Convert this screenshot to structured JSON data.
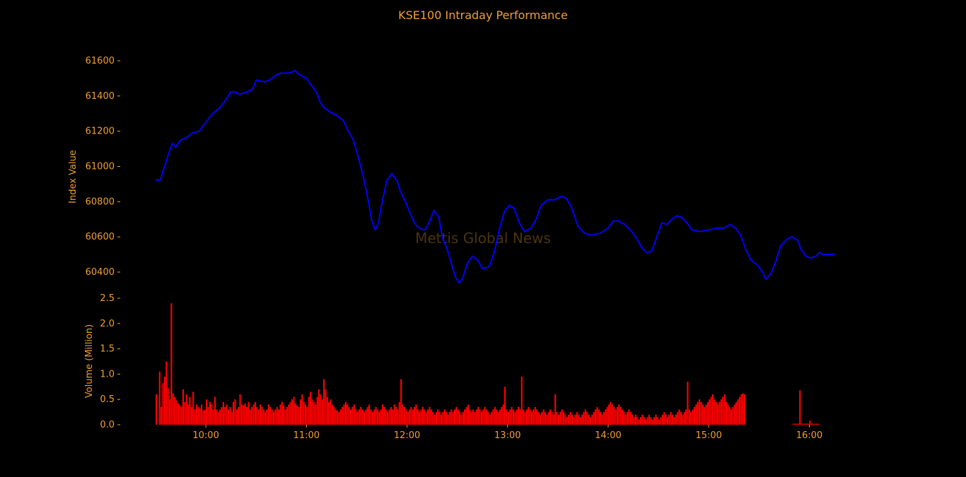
{
  "chart_data": {
    "type": "line+bar",
    "title": "KSE100 Intraday Performance",
    "watermark": "Mettis Global News",
    "colors": {
      "background": "#000000",
      "text": "#f0a030",
      "index_line": "#0000ff",
      "volume_bars": "#ff0000",
      "watermark": "#4a3410"
    },
    "grid": false,
    "legend": "none",
    "x_axis": {
      "label": "",
      "range": [
        "09:30",
        "16:15"
      ],
      "ticks": [
        "10:00",
        "11:00",
        "12:00",
        "13:00",
        "14:00",
        "15:00",
        "16:00"
      ]
    },
    "index_panel": {
      "ylabel": "Index Value",
      "ylim": [
        60330,
        61640
      ],
      "yticks": [
        "60400",
        "60600",
        "60800",
        "61000",
        "61200",
        "61400",
        "61600"
      ],
      "series": {
        "type": "line",
        "points": [
          [
            "09:30",
            60920
          ],
          [
            "09:33",
            60925
          ],
          [
            "09:35",
            60990
          ],
          [
            "09:38",
            61080
          ],
          [
            "09:40",
            61130
          ],
          [
            "09:42",
            61110
          ],
          [
            "09:45",
            61150
          ],
          [
            "09:48",
            61160
          ],
          [
            "09:52",
            61190
          ],
          [
            "09:56",
            61200
          ],
          [
            "10:00",
            61250
          ],
          [
            "10:04",
            61300
          ],
          [
            "10:08",
            61330
          ],
          [
            "10:12",
            61380
          ],
          [
            "10:15",
            61425
          ],
          [
            "10:18",
            61420
          ],
          [
            "10:20",
            61410
          ],
          [
            "10:24",
            61420
          ],
          [
            "10:28",
            61440
          ],
          [
            "10:30",
            61490
          ],
          [
            "10:35",
            61480
          ],
          [
            "10:38",
            61490
          ],
          [
            "10:42",
            61520
          ],
          [
            "10:45",
            61530
          ],
          [
            "10:50",
            61530
          ],
          [
            "10:53",
            61545
          ],
          [
            "10:56",
            61520
          ],
          [
            "11:00",
            61500
          ],
          [
            "11:03",
            61460
          ],
          [
            "11:06",
            61420
          ],
          [
            "11:08",
            61370
          ],
          [
            "11:10",
            61340
          ],
          [
            "11:14",
            61310
          ],
          [
            "11:18",
            61290
          ],
          [
            "11:22",
            61260
          ],
          [
            "11:25",
            61200
          ],
          [
            "11:28",
            61150
          ],
          [
            "11:31",
            61050
          ],
          [
            "11:34",
            60940
          ],
          [
            "11:37",
            60800
          ],
          [
            "11:39",
            60690
          ],
          [
            "11:41",
            60640
          ],
          [
            "11:43",
            60680
          ],
          [
            "11:45",
            60790
          ],
          [
            "11:48",
            60920
          ],
          [
            "11:51",
            60960
          ],
          [
            "11:54",
            60920
          ],
          [
            "11:56",
            60860
          ],
          [
            "11:59",
            60800
          ],
          [
            "12:02",
            60730
          ],
          [
            "12:05",
            60670
          ],
          [
            "12:08",
            60645
          ],
          [
            "12:11",
            60640
          ],
          [
            "12:14",
            60700
          ],
          [
            "12:16",
            60750
          ],
          [
            "12:19",
            60710
          ],
          [
            "12:21",
            60600
          ],
          [
            "12:24",
            60530
          ],
          [
            "12:27",
            60430
          ],
          [
            "12:29",
            60370
          ],
          [
            "12:31",
            60340
          ],
          [
            "12:33",
            60360
          ],
          [
            "12:36",
            60450
          ],
          [
            "12:39",
            60490
          ],
          [
            "12:42",
            60470
          ],
          [
            "12:45",
            60420
          ],
          [
            "12:49",
            60430
          ],
          [
            "12:52",
            60510
          ],
          [
            "12:55",
            60640
          ],
          [
            "12:58",
            60740
          ],
          [
            "13:01",
            60780
          ],
          [
            "13:04",
            60760
          ],
          [
            "13:07",
            60680
          ],
          [
            "13:10",
            60630
          ],
          [
            "13:14",
            60650
          ],
          [
            "13:17",
            60700
          ],
          [
            "13:20",
            60780
          ],
          [
            "13:24",
            60810
          ],
          [
            "13:28",
            60810
          ],
          [
            "13:32",
            60830
          ],
          [
            "13:35",
            60820
          ],
          [
            "13:38",
            60770
          ],
          [
            "13:42",
            60660
          ],
          [
            "13:46",
            60620
          ],
          [
            "13:50",
            60610
          ],
          [
            "13:55",
            60620
          ],
          [
            "14:00",
            60650
          ],
          [
            "14:03",
            60690
          ],
          [
            "14:06",
            60690
          ],
          [
            "14:10",
            60670
          ],
          [
            "14:14",
            60630
          ],
          [
            "14:17",
            60590
          ],
          [
            "14:20",
            60540
          ],
          [
            "14:23",
            60510
          ],
          [
            "14:26",
            60520
          ],
          [
            "14:29",
            60600
          ],
          [
            "14:32",
            60680
          ],
          [
            "14:35",
            60670
          ],
          [
            "14:38",
            60700
          ],
          [
            "14:41",
            60720
          ],
          [
            "14:44",
            60710
          ],
          [
            "14:47",
            60680
          ],
          [
            "14:50",
            60640
          ],
          [
            "14:55",
            60630
          ],
          [
            "15:00",
            60640
          ],
          [
            "15:05",
            60650
          ],
          [
            "15:09",
            60650
          ],
          [
            "15:13",
            60670
          ],
          [
            "15:16",
            60650
          ],
          [
            "15:19",
            60610
          ],
          [
            "15:22",
            60530
          ],
          [
            "15:25",
            60470
          ],
          [
            "15:29",
            60440
          ],
          [
            "15:32",
            60400
          ],
          [
            "15:34",
            60360
          ],
          [
            "15:37",
            60390
          ],
          [
            "15:40",
            60460
          ],
          [
            "15:43",
            60550
          ],
          [
            "15:47",
            60590
          ],
          [
            "15:50",
            60600
          ],
          [
            "15:53",
            60580
          ],
          [
            "15:55",
            60530
          ],
          [
            "15:58",
            60490
          ],
          [
            "16:01",
            60480
          ],
          [
            "16:04",
            60490
          ],
          [
            "16:06",
            60510
          ],
          [
            "16:08",
            60500
          ],
          [
            "16:15",
            60500
          ]
        ]
      }
    },
    "volume_panel": {
      "ylabel": "Volume (Million)",
      "ylim": [
        0,
        2.5
      ],
      "yticks": [
        "0.0",
        "0.5",
        "1.0",
        "1.5",
        "2.0",
        "2.5"
      ],
      "bar_interval_minutes": 1,
      "series": {
        "type": "bar",
        "start": "09:30",
        "values": [
          0.6,
          0.0,
          1.05,
          0.35,
          0.82,
          0.95,
          1.25,
          0.72,
          0.5,
          2.4,
          0.62,
          0.55,
          0.48,
          0.42,
          0.38,
          0.35,
          0.7,
          0.45,
          0.6,
          0.4,
          0.55,
          0.35,
          0.65,
          0.3,
          0.4,
          0.35,
          0.32,
          0.4,
          0.28,
          0.3,
          0.5,
          0.35,
          0.45,
          0.4,
          0.3,
          0.55,
          0.3,
          0.25,
          0.3,
          0.35,
          0.45,
          0.35,
          0.4,
          0.3,
          0.35,
          0.25,
          0.45,
          0.5,
          0.3,
          0.35,
          0.6,
          0.4,
          0.38,
          0.42,
          0.35,
          0.45,
          0.3,
          0.35,
          0.4,
          0.45,
          0.35,
          0.3,
          0.4,
          0.35,
          0.3,
          0.25,
          0.3,
          0.4,
          0.35,
          0.3,
          0.25,
          0.3,
          0.35,
          0.3,
          0.4,
          0.45,
          0.38,
          0.3,
          0.35,
          0.4,
          0.45,
          0.5,
          0.55,
          0.42,
          0.38,
          0.35,
          0.5,
          0.6,
          0.45,
          0.4,
          0.35,
          0.55,
          0.65,
          0.5,
          0.45,
          0.4,
          0.55,
          0.7,
          0.6,
          0.5,
          0.9,
          0.7,
          0.55,
          0.45,
          0.5,
          0.4,
          0.35,
          0.3,
          0.28,
          0.25,
          0.3,
          0.35,
          0.4,
          0.45,
          0.4,
          0.35,
          0.3,
          0.35,
          0.4,
          0.3,
          0.25,
          0.3,
          0.35,
          0.3,
          0.25,
          0.3,
          0.35,
          0.4,
          0.3,
          0.25,
          0.3,
          0.35,
          0.3,
          0.25,
          0.3,
          0.4,
          0.35,
          0.3,
          0.25,
          0.3,
          0.35,
          0.3,
          0.4,
          0.35,
          0.3,
          0.45,
          0.9,
          0.4,
          0.35,
          0.3,
          0.25,
          0.3,
          0.35,
          0.3,
          0.35,
          0.4,
          0.3,
          0.25,
          0.3,
          0.35,
          0.3,
          0.25,
          0.3,
          0.35,
          0.3,
          0.25,
          0.2,
          0.25,
          0.3,
          0.25,
          0.2,
          0.25,
          0.3,
          0.25,
          0.2,
          0.25,
          0.3,
          0.25,
          0.3,
          0.35,
          0.3,
          0.25,
          0.2,
          0.25,
          0.3,
          0.35,
          0.4,
          0.3,
          0.25,
          0.3,
          0.25,
          0.3,
          0.35,
          0.3,
          0.25,
          0.3,
          0.35,
          0.3,
          0.25,
          0.2,
          0.25,
          0.3,
          0.35,
          0.3,
          0.25,
          0.3,
          0.35,
          0.4,
          0.75,
          0.3,
          0.25,
          0.3,
          0.35,
          0.3,
          0.25,
          0.3,
          0.35,
          0.3,
          0.95,
          0.3,
          0.25,
          0.3,
          0.35,
          0.3,
          0.25,
          0.3,
          0.35,
          0.3,
          0.25,
          0.2,
          0.25,
          0.3,
          0.25,
          0.2,
          0.25,
          0.3,
          0.25,
          0.2,
          0.6,
          0.25,
          0.2,
          0.25,
          0.3,
          0.25,
          0.2,
          0.15,
          0.2,
          0.25,
          0.2,
          0.15,
          0.2,
          0.25,
          0.2,
          0.15,
          0.2,
          0.25,
          0.3,
          0.25,
          0.2,
          0.15,
          0.2,
          0.25,
          0.3,
          0.35,
          0.3,
          0.25,
          0.2,
          0.25,
          0.3,
          0.35,
          0.4,
          0.45,
          0.4,
          0.35,
          0.3,
          0.35,
          0.4,
          0.35,
          0.3,
          0.25,
          0.2,
          0.25,
          0.3,
          0.25,
          0.2,
          0.15,
          0.2,
          0.15,
          0.1,
          0.15,
          0.2,
          0.15,
          0.1,
          0.15,
          0.2,
          0.15,
          0.1,
          0.15,
          0.2,
          0.15,
          0.1,
          0.15,
          0.2,
          0.25,
          0.2,
          0.15,
          0.2,
          0.25,
          0.2,
          0.15,
          0.2,
          0.25,
          0.3,
          0.25,
          0.2,
          0.25,
          0.3,
          0.85,
          0.3,
          0.25,
          0.3,
          0.35,
          0.4,
          0.45,
          0.5,
          0.45,
          0.4,
          0.35,
          0.4,
          0.45,
          0.5,
          0.55,
          0.6,
          0.5,
          0.45,
          0.4,
          0.45,
          0.5,
          0.55,
          0.6,
          0.45,
          0.4,
          0.35,
          0.3,
          0.35,
          0.4,
          0.45,
          0.5,
          0.55,
          0.6,
          0.62,
          0.6,
          0.0,
          0.0,
          0.0,
          0.0,
          0.0,
          0.0,
          0.0,
          0.0,
          0.0,
          0.0,
          0.0,
          0.0,
          0.0,
          0.0,
          0.0,
          0.0,
          0.0,
          0.0,
          0.0,
          0.0,
          0.0,
          0.0,
          0.0,
          0.0,
          0.0,
          0.0,
          0.0,
          0.0,
          0.02,
          0.02,
          0.02,
          0.02,
          0.68,
          0.02,
          0.02,
          0.02,
          0.02,
          0.02,
          0.08,
          0.02,
          0.02,
          0.02,
          0.02,
          0.02
        ]
      }
    }
  }
}
